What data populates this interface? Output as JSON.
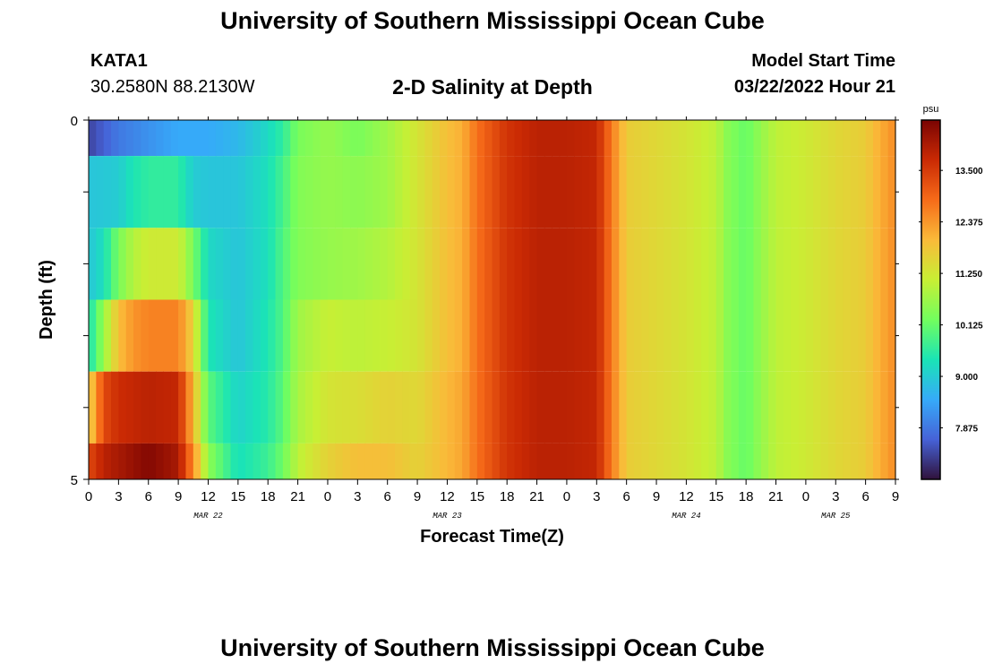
{
  "page": {
    "title": "University of Southern Mississippi Ocean Cube",
    "station": "KATA1",
    "coords": "30.2580N  88.2130W",
    "subtitle": "2-D Salinity at Depth",
    "start_label": "Model Start Time",
    "start_value": "03/22/2022 Hour 21",
    "footer_title": "University of Southern Mississippi Ocean Cube"
  },
  "colors": {
    "colormap": [
      "#30123b",
      "#4662d7",
      "#36aaf9",
      "#1ae4b6",
      "#72fe5e",
      "#c8ef34",
      "#faba39",
      "#f66b19",
      "#ca2a04",
      "#7a0403"
    ]
  },
  "chart_data": {
    "type": "heatmap",
    "title": "2-D Salinity at Depth",
    "xlabel": "Forecast Time(Z)",
    "ylabel": "Depth (ft)",
    "x_unit": "forecast hour",
    "x_range": [
      0,
      81
    ],
    "y_range": [
      0,
      5
    ],
    "y_ticks": [
      0,
      1,
      2,
      3,
      4,
      5
    ],
    "y_tick_labels": [
      "0",
      "",
      "",
      "",
      "",
      "5"
    ],
    "x_tick_hours": [
      0,
      3,
      6,
      9,
      12,
      15,
      18,
      21,
      24,
      27,
      30,
      33,
      36,
      39,
      42,
      45,
      48,
      51,
      54,
      57,
      60,
      63,
      66,
      69,
      72,
      75,
      78,
      81
    ],
    "x_tick_labels": [
      "0",
      "3",
      "6",
      "9",
      "12",
      "15",
      "18",
      "21",
      "0",
      "3",
      "6",
      "9",
      "12",
      "15",
      "18",
      "21",
      "0",
      "3",
      "6",
      "9",
      "12",
      "15",
      "18",
      "21",
      "0",
      "3",
      "6",
      "9"
    ],
    "day_labels": [
      {
        "text": "MAR 22",
        "hour": 12
      },
      {
        "text": "MAR 23",
        "hour": 36
      },
      {
        "text": "MAR 24",
        "hour": 60
      },
      {
        "text": "MAR 25",
        "hour": 75
      }
    ],
    "colorbar": {
      "unit": "psu",
      "min": 6.75,
      "max": 14.6,
      "ticks": [
        7.875,
        9.0,
        10.125,
        11.25,
        12.375,
        13.5
      ],
      "tick_labels": [
        "7.875",
        "9.000",
        "10.125",
        "11.250",
        "12.375",
        "13.500"
      ]
    },
    "rows": [
      {
        "depth_range": [
          0,
          0.5
        ],
        "points": [
          [
            0,
            7.3
          ],
          [
            3,
            7.9
          ],
          [
            6,
            8.2
          ],
          [
            9,
            8.5
          ],
          [
            12,
            8.5
          ],
          [
            15,
            8.7
          ],
          [
            18,
            9.2
          ],
          [
            19.5,
            9.6
          ],
          [
            21,
            10.3
          ],
          [
            24,
            10.6
          ],
          [
            27,
            10.3
          ],
          [
            30,
            10.7
          ],
          [
            33,
            11.3
          ],
          [
            36,
            11.9
          ],
          [
            37.5,
            12.1
          ],
          [
            39,
            12.8
          ],
          [
            42,
            13.6
          ],
          [
            45,
            13.9
          ],
          [
            48,
            13.9
          ],
          [
            51,
            13.8
          ],
          [
            52.5,
            12.7
          ],
          [
            54,
            11.7
          ],
          [
            57,
            11.5
          ],
          [
            60,
            11.3
          ],
          [
            63,
            11.0
          ],
          [
            64,
            10.5
          ],
          [
            66,
            10.1
          ],
          [
            67.5,
            10.6
          ],
          [
            69,
            11.0
          ],
          [
            72,
            11.2
          ],
          [
            75,
            11.5
          ],
          [
            78,
            11.7
          ],
          [
            79,
            12.0
          ],
          [
            81,
            12.5
          ]
        ]
      },
      {
        "depth_range": [
          0.5,
          1.5
        ],
        "points": [
          [
            0,
            8.9
          ],
          [
            3,
            9.0
          ],
          [
            4.5,
            9.4
          ],
          [
            6,
            9.6
          ],
          [
            9,
            9.6
          ],
          [
            10.5,
            9.0
          ],
          [
            12,
            8.9
          ],
          [
            15,
            8.9
          ],
          [
            18,
            9.3
          ],
          [
            19.5,
            9.8
          ],
          [
            21,
            10.4
          ],
          [
            24,
            10.6
          ],
          [
            27,
            10.5
          ],
          [
            30,
            10.7
          ],
          [
            33,
            11.3
          ],
          [
            36,
            11.9
          ],
          [
            37.5,
            12.1
          ],
          [
            39,
            12.8
          ],
          [
            42,
            13.6
          ],
          [
            45,
            13.9
          ],
          [
            48,
            13.9
          ],
          [
            51,
            13.8
          ],
          [
            52.5,
            12.7
          ],
          [
            54,
            11.7
          ],
          [
            57,
            11.5
          ],
          [
            60,
            11.3
          ],
          [
            63,
            11.0
          ],
          [
            64,
            10.5
          ],
          [
            66,
            10.1
          ],
          [
            67.5,
            10.6
          ],
          [
            69,
            11.0
          ],
          [
            72,
            11.2
          ],
          [
            75,
            11.5
          ],
          [
            78,
            11.7
          ],
          [
            79,
            12.0
          ],
          [
            81,
            12.5
          ]
        ]
      },
      {
        "depth_range": [
          1.5,
          2.5
        ],
        "points": [
          [
            0,
            8.9
          ],
          [
            1.5,
            9.3
          ],
          [
            3,
            10.3
          ],
          [
            4.5,
            10.9
          ],
          [
            6,
            11.2
          ],
          [
            9,
            11.2
          ],
          [
            10.5,
            10.3
          ],
          [
            12,
            9.2
          ],
          [
            15,
            8.9
          ],
          [
            18,
            9.3
          ],
          [
            19.5,
            9.9
          ],
          [
            21,
            10.4
          ],
          [
            24,
            10.6
          ],
          [
            27,
            10.7
          ],
          [
            30,
            10.9
          ],
          [
            33,
            11.3
          ],
          [
            36,
            11.9
          ],
          [
            37.5,
            12.1
          ],
          [
            39,
            12.8
          ],
          [
            42,
            13.6
          ],
          [
            45,
            13.9
          ],
          [
            48,
            13.9
          ],
          [
            51,
            13.8
          ],
          [
            52.5,
            12.7
          ],
          [
            54,
            11.7
          ],
          [
            57,
            11.5
          ],
          [
            60,
            11.3
          ],
          [
            63,
            11.0
          ],
          [
            64,
            10.5
          ],
          [
            66,
            10.1
          ],
          [
            67.5,
            10.6
          ],
          [
            69,
            11.0
          ],
          [
            72,
            11.2
          ],
          [
            75,
            11.5
          ],
          [
            78,
            11.7
          ],
          [
            79,
            12.0
          ],
          [
            81,
            12.5
          ]
        ]
      },
      {
        "depth_range": [
          2.5,
          3.5
        ],
        "points": [
          [
            0,
            9.3
          ],
          [
            1.5,
            10.6
          ],
          [
            3,
            11.9
          ],
          [
            4.5,
            12.4
          ],
          [
            6,
            12.6
          ],
          [
            9,
            12.6
          ],
          [
            10.5,
            11.6
          ],
          [
            12,
            9.4
          ],
          [
            15,
            8.9
          ],
          [
            18,
            9.4
          ],
          [
            19.5,
            9.9
          ],
          [
            21,
            10.7
          ],
          [
            24,
            11.1
          ],
          [
            27,
            11.0
          ],
          [
            30,
            11.1
          ],
          [
            33,
            11.3
          ],
          [
            36,
            11.9
          ],
          [
            37.5,
            12.1
          ],
          [
            39,
            12.8
          ],
          [
            42,
            13.6
          ],
          [
            45,
            13.9
          ],
          [
            48,
            13.9
          ],
          [
            51,
            13.8
          ],
          [
            52.5,
            12.7
          ],
          [
            54,
            11.7
          ],
          [
            57,
            11.5
          ],
          [
            60,
            11.3
          ],
          [
            63,
            11.0
          ],
          [
            64,
            10.5
          ],
          [
            66,
            10.1
          ],
          [
            67.5,
            10.6
          ],
          [
            69,
            11.0
          ],
          [
            72,
            11.2
          ],
          [
            75,
            11.5
          ],
          [
            78,
            11.7
          ],
          [
            79,
            12.0
          ],
          [
            81,
            12.5
          ]
        ]
      },
      {
        "depth_range": [
          3.5,
          4.5
        ],
        "points": [
          [
            0,
            11.5
          ],
          [
            1.5,
            13.3
          ],
          [
            3,
            13.7
          ],
          [
            6,
            13.9
          ],
          [
            9,
            13.8
          ],
          [
            10.5,
            12.0
          ],
          [
            12,
            10.0
          ],
          [
            15,
            9.1
          ],
          [
            18,
            9.5
          ],
          [
            19.5,
            10.0
          ],
          [
            21,
            10.8
          ],
          [
            24,
            11.3
          ],
          [
            27,
            11.4
          ],
          [
            30,
            11.6
          ],
          [
            33,
            11.5
          ],
          [
            36,
            12.0
          ],
          [
            37.5,
            12.2
          ],
          [
            39,
            12.8
          ],
          [
            42,
            13.6
          ],
          [
            45,
            13.9
          ],
          [
            48,
            13.9
          ],
          [
            51,
            13.8
          ],
          [
            52.5,
            12.7
          ],
          [
            54,
            11.7
          ],
          [
            57,
            11.5
          ],
          [
            60,
            11.3
          ],
          [
            63,
            11.0
          ],
          [
            64,
            10.5
          ],
          [
            66,
            10.1
          ],
          [
            67.5,
            10.6
          ],
          [
            69,
            11.0
          ],
          [
            72,
            11.2
          ],
          [
            75,
            11.5
          ],
          [
            78,
            11.7
          ],
          [
            79,
            12.0
          ],
          [
            81,
            12.5
          ]
        ]
      },
      {
        "depth_range": [
          4.5,
          5
        ],
        "points": [
          [
            0,
            13.3
          ],
          [
            1.5,
            13.9
          ],
          [
            3,
            14.1
          ],
          [
            6,
            14.5
          ],
          [
            9,
            14.1
          ],
          [
            10.5,
            12.5
          ],
          [
            12,
            10.5
          ],
          [
            15,
            9.3
          ],
          [
            18,
            9.7
          ],
          [
            19.5,
            10.2
          ],
          [
            21,
            11.0
          ],
          [
            24,
            11.6
          ],
          [
            27,
            11.9
          ],
          [
            30,
            11.9
          ],
          [
            33,
            11.6
          ],
          [
            36,
            12.0
          ],
          [
            37.5,
            12.2
          ],
          [
            39,
            12.8
          ],
          [
            42,
            13.6
          ],
          [
            45,
            13.9
          ],
          [
            48,
            13.9
          ],
          [
            51,
            13.8
          ],
          [
            52.5,
            12.7
          ],
          [
            54,
            11.7
          ],
          [
            57,
            11.5
          ],
          [
            60,
            11.3
          ],
          [
            63,
            11.0
          ],
          [
            64,
            10.5
          ],
          [
            66,
            10.1
          ],
          [
            67.5,
            10.6
          ],
          [
            69,
            11.0
          ],
          [
            72,
            11.2
          ],
          [
            75,
            11.5
          ],
          [
            78,
            11.7
          ],
          [
            79,
            12.0
          ],
          [
            81,
            12.5
          ]
        ]
      }
    ]
  }
}
